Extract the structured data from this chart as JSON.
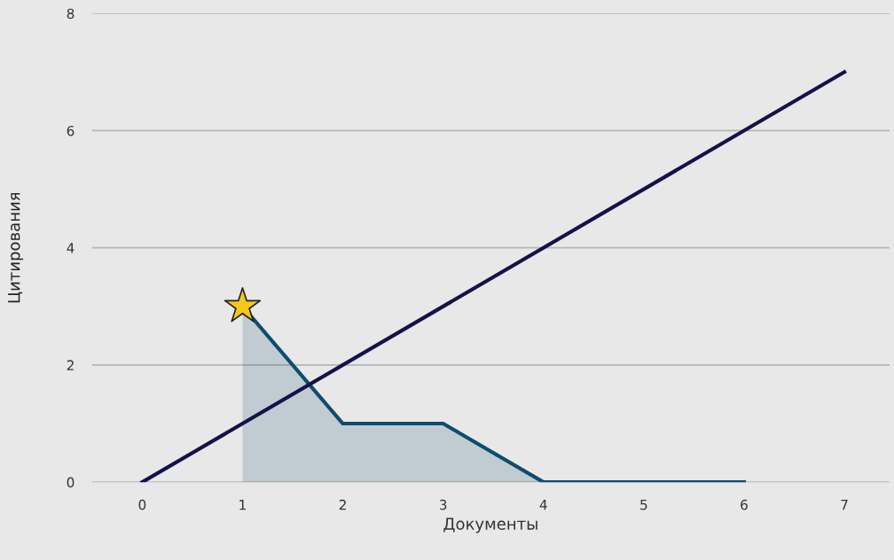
{
  "chart_data": {
    "type": "line",
    "xlabel": "Документы",
    "ylabel": "Цитирования",
    "xlim": [
      -0.5,
      7.45
    ],
    "ylim": [
      0,
      8
    ],
    "xticks": [
      0,
      1,
      2,
      3,
      4,
      5,
      6,
      7
    ],
    "yticks": [
      0,
      2,
      4,
      6,
      8
    ],
    "grid": "y",
    "series": [
      {
        "type": "area",
        "color": "#0f4c6e",
        "x": [
          1,
          2,
          3,
          4,
          5,
          6
        ],
        "values": [
          3,
          1,
          1,
          0,
          0,
          0
        ]
      },
      {
        "color": "#14124a",
        "x": [
          0,
          7
        ],
        "values": [
          0,
          7
        ]
      },
      {
        "type": "scatter",
        "color": "#f2c81a",
        "marker": "star",
        "x": [
          1
        ],
        "values": [
          3
        ]
      }
    ]
  }
}
